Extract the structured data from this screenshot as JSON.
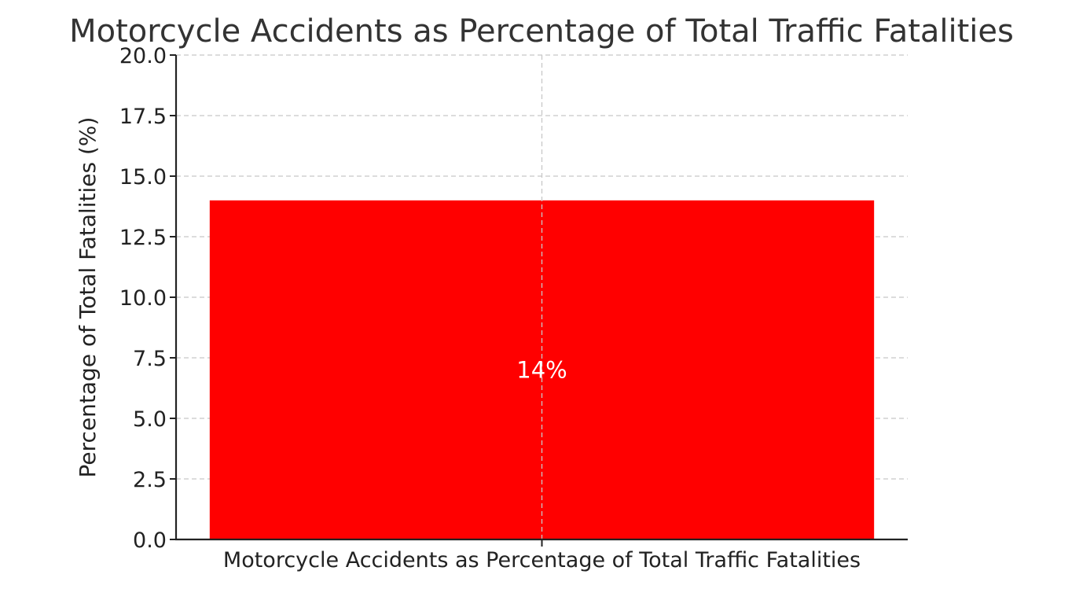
{
  "chart_data": {
    "type": "bar",
    "title": "Motorcycle Accidents as Percentage of Total Traffic Fatalities",
    "xlabel": "",
    "ylabel": "Percentage of Total Fatalities (%)",
    "categories": [
      "Motorcycle Accidents as Percentage of Total Traffic Fatalities"
    ],
    "values": [
      14
    ],
    "data_labels": [
      "14%"
    ],
    "ylim": [
      0,
      20
    ],
    "yticks": [
      0,
      2.5,
      5,
      7.5,
      10,
      12.5,
      15,
      17.5,
      20
    ],
    "ytick_labels": [
      "0.0",
      "2.5",
      "5.0",
      "7.5",
      "10.0",
      "12.5",
      "15.0",
      "17.5",
      "20.0"
    ],
    "grid": true,
    "colors": {
      "bar": "#ff0000",
      "data_label": "#ffffff",
      "grid": "#c8c8c8",
      "axis": "#222222"
    }
  }
}
